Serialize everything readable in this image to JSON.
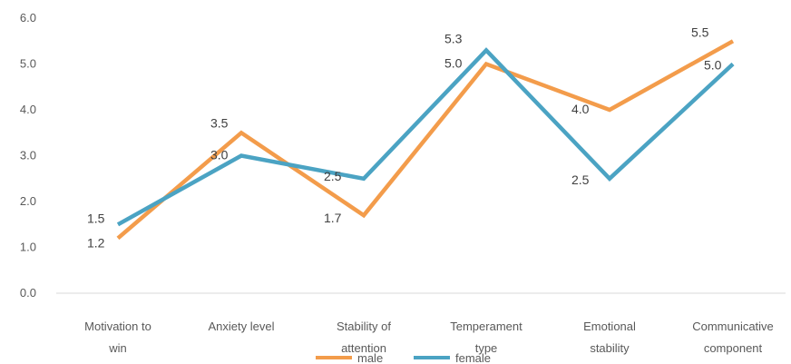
{
  "chart_data": {
    "type": "line",
    "categories": [
      [
        "Motivation to",
        "win"
      ],
      [
        "Anxiety level"
      ],
      [
        "Stability of",
        "attention"
      ],
      [
        "Temperament",
        "type"
      ],
      [
        "Emotional",
        "stability"
      ],
      [
        "Communicative",
        "component"
      ]
    ],
    "series": [
      {
        "name": "male",
        "color": "#F39C4B",
        "values": [
          1.2,
          3.5,
          1.7,
          5.0,
          4.0,
          5.5
        ],
        "labels": [
          "1.2",
          "3.5",
          "1.7",
          "5.0",
          "4.0",
          "5.5"
        ]
      },
      {
        "name": "female",
        "color": "#4BA3C3",
        "values": [
          1.5,
          3.0,
          2.5,
          5.3,
          2.5,
          5.0
        ],
        "labels": [
          "1.5",
          "3.0",
          "2.5",
          "5.3",
          "2.5",
          "5.0"
        ]
      }
    ],
    "yticks": [
      "0.0",
      "1.0",
      "2.0",
      "3.0",
      "4.0",
      "5.0",
      "6.0"
    ],
    "ylim": [
      0,
      6
    ],
    "grid": false,
    "legend_position": "bottom"
  }
}
